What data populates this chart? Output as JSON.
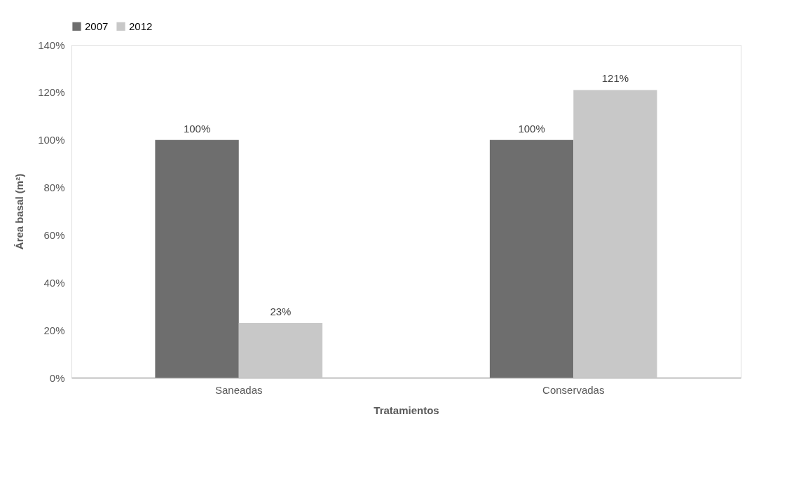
{
  "chart_data": {
    "type": "bar",
    "xlabel": "Tratamientos",
    "ylabel": "Área basal (m²)",
    "categories": [
      "Saneadas",
      "Conservadas"
    ],
    "series": [
      {
        "name": "2007",
        "color": "#6e6e6e",
        "values": [
          100,
          100
        ],
        "value_labels": [
          "100%",
          "100%"
        ]
      },
      {
        "name": "2012",
        "color": "#c8c8c8",
        "values": [
          23,
          121
        ],
        "value_labels": [
          "23%",
          "121%"
        ]
      }
    ],
    "ylim": [
      0,
      140
    ],
    "yticks": [
      {
        "value": 0,
        "label": "0%"
      },
      {
        "value": 20,
        "label": "20%"
      },
      {
        "value": 40,
        "label": "40%"
      },
      {
        "value": 60,
        "label": "60%"
      },
      {
        "value": 80,
        "label": "80%"
      },
      {
        "value": 100,
        "label": "100%"
      },
      {
        "value": 120,
        "label": "120%"
      },
      {
        "value": 140,
        "label": "140%"
      }
    ],
    "grid": false,
    "legend": "top"
  }
}
